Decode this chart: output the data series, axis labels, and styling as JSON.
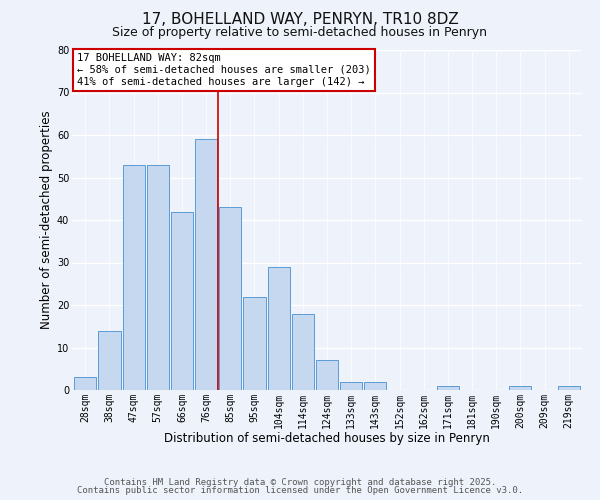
{
  "title": "17, BOHELLAND WAY, PENRYN, TR10 8DZ",
  "subtitle": "Size of property relative to semi-detached houses in Penryn",
  "xlabel": "Distribution of semi-detached houses by size in Penryn",
  "ylabel": "Number of semi-detached properties",
  "bins": [
    "28sqm",
    "38sqm",
    "47sqm",
    "57sqm",
    "66sqm",
    "76sqm",
    "85sqm",
    "95sqm",
    "104sqm",
    "114sqm",
    "124sqm",
    "133sqm",
    "143sqm",
    "152sqm",
    "162sqm",
    "171sqm",
    "181sqm",
    "190sqm",
    "200sqm",
    "209sqm",
    "219sqm"
  ],
  "values": [
    3,
    14,
    53,
    53,
    42,
    59,
    43,
    22,
    29,
    18,
    7,
    2,
    2,
    0,
    0,
    1,
    0,
    0,
    1,
    0,
    1
  ],
  "bar_color": "#c5d8f0",
  "bar_edge_color": "#5b9bd5",
  "marker_bin_index": 5,
  "annotation_title": "17 BOHELLAND WAY: 82sqm",
  "annotation_line1": "← 58% of semi-detached houses are smaller (203)",
  "annotation_line2": "41% of semi-detached houses are larger (142) →",
  "annotation_box_color": "#ffffff",
  "annotation_box_edge_color": "#cc0000",
  "marker_line_color": "#cc0000",
  "ylim_max": 80,
  "yticks": [
    0,
    10,
    20,
    30,
    40,
    50,
    60,
    70,
    80
  ],
  "footer1": "Contains HM Land Registry data © Crown copyright and database right 2025.",
  "footer2": "Contains public sector information licensed under the Open Government Licence v3.0.",
  "bg_color": "#eef2fb",
  "grid_color": "#ffffff",
  "title_fontsize": 11,
  "subtitle_fontsize": 9,
  "axis_label_fontsize": 8.5,
  "tick_fontsize": 7,
  "annotation_fontsize": 7.5,
  "footer_fontsize": 6.5
}
